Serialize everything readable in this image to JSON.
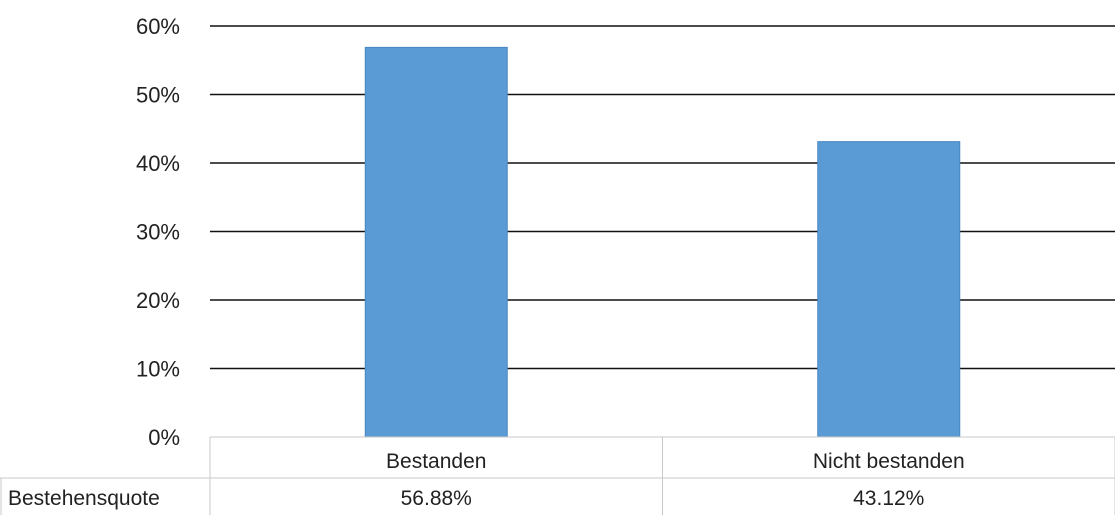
{
  "chart_data": {
    "type": "bar",
    "categories": [
      "Bestanden",
      "Nicht bestanden"
    ],
    "series": [
      {
        "name": "Bestehensquote",
        "values": [
          56.88,
          43.12
        ]
      }
    ],
    "value_labels": [
      "56.88%",
      "43.12%"
    ],
    "y_ticks": [
      "0%",
      "10%",
      "20%",
      "30%",
      "40%",
      "50%",
      "60%"
    ],
    "ylim": [
      0,
      60
    ],
    "grid": true,
    "bar_color": "#5b9bd5",
    "bar_edge_color": "#4a87c4",
    "data_table": true
  }
}
